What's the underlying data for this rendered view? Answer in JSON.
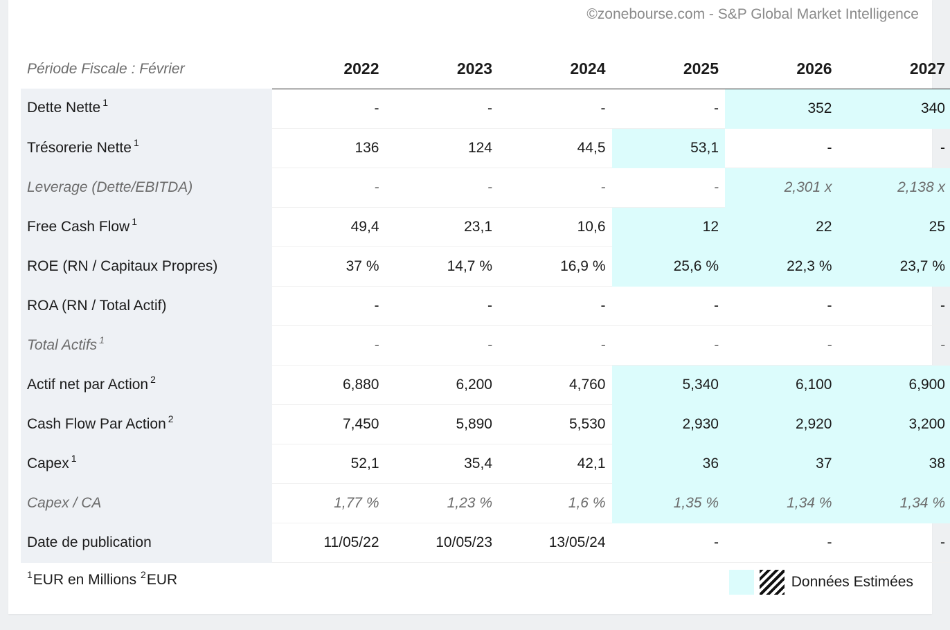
{
  "source": "©zonebourse.com - S&P Global Market Intelligence",
  "table": {
    "period_label": "Période Fiscale : Février",
    "years": [
      "2022",
      "2023",
      "2024",
      "2025",
      "2026",
      "2027"
    ],
    "rows": [
      {
        "label": "Dette Nette",
        "note": "1",
        "italic": false,
        "values": [
          "-",
          "-",
          "-",
          "-",
          "352",
          "340"
        ],
        "estimated_from": 4
      },
      {
        "label": "Trésorerie Nette",
        "note": "1",
        "italic": false,
        "values": [
          "136",
          "124",
          "44,5",
          "53,1",
          "-",
          "-"
        ],
        "estimated": [
          3
        ]
      },
      {
        "label": "Leverage (Dette/EBITDA)",
        "note": "",
        "italic": true,
        "values": [
          "-",
          "-",
          "-",
          "-",
          "2,301 x",
          "2,138 x"
        ],
        "estimated_from": 4
      },
      {
        "label": "Free Cash Flow",
        "note": "1",
        "italic": false,
        "values": [
          "49,4",
          "23,1",
          "10,6",
          "12",
          "22",
          "25"
        ],
        "estimated_from": 3
      },
      {
        "label": "ROE (RN / Capitaux Propres)",
        "note": "",
        "italic": false,
        "values": [
          "37 %",
          "14,7 %",
          "16,9 %",
          "25,6 %",
          "22,3 %",
          "23,7 %"
        ],
        "estimated_from": 3
      },
      {
        "label": "ROA (RN / Total Actif)",
        "note": "",
        "italic": false,
        "values": [
          "-",
          "-",
          "-",
          "-",
          "-",
          "-"
        ],
        "estimated": []
      },
      {
        "label": "Total Actifs",
        "note": "1",
        "italic": true,
        "values": [
          "-",
          "-",
          "-",
          "-",
          "-",
          "-"
        ],
        "estimated": []
      },
      {
        "label": "Actif net par Action",
        "note": "2",
        "italic": false,
        "values": [
          "6,880",
          "6,200",
          "4,760",
          "5,340",
          "6,100",
          "6,900"
        ],
        "estimated_from": 3
      },
      {
        "label": "Cash Flow Par Action",
        "note": "2",
        "italic": false,
        "values": [
          "7,450",
          "5,890",
          "5,530",
          "2,930",
          "2,920",
          "3,200"
        ],
        "estimated_from": 3
      },
      {
        "label": "Capex",
        "note": "1",
        "italic": false,
        "values": [
          "52,1",
          "35,4",
          "42,1",
          "36",
          "37",
          "38"
        ],
        "estimated_from": 3
      },
      {
        "label": "Capex / CA",
        "note": "",
        "italic": true,
        "values": [
          "1,77 %",
          "1,23 %",
          "1,6 %",
          "1,35 %",
          "1,34 %",
          "1,34 %"
        ],
        "estimated_from": 3
      },
      {
        "label": "Date de publication",
        "note": "",
        "italic": false,
        "values": [
          "11/05/22",
          "10/05/23",
          "13/05/24",
          "-",
          "-",
          "-"
        ],
        "estimated": []
      }
    ]
  },
  "footnote": {
    "note1_marker": "1",
    "note1_text": "EUR en Millions",
    "note2_marker": "2",
    "note2_text": "EUR"
  },
  "legend": {
    "label": "Données Estimées"
  },
  "colors": {
    "estimated_bg": "#dcfcfc",
    "label_bg": "#eef1f5"
  }
}
